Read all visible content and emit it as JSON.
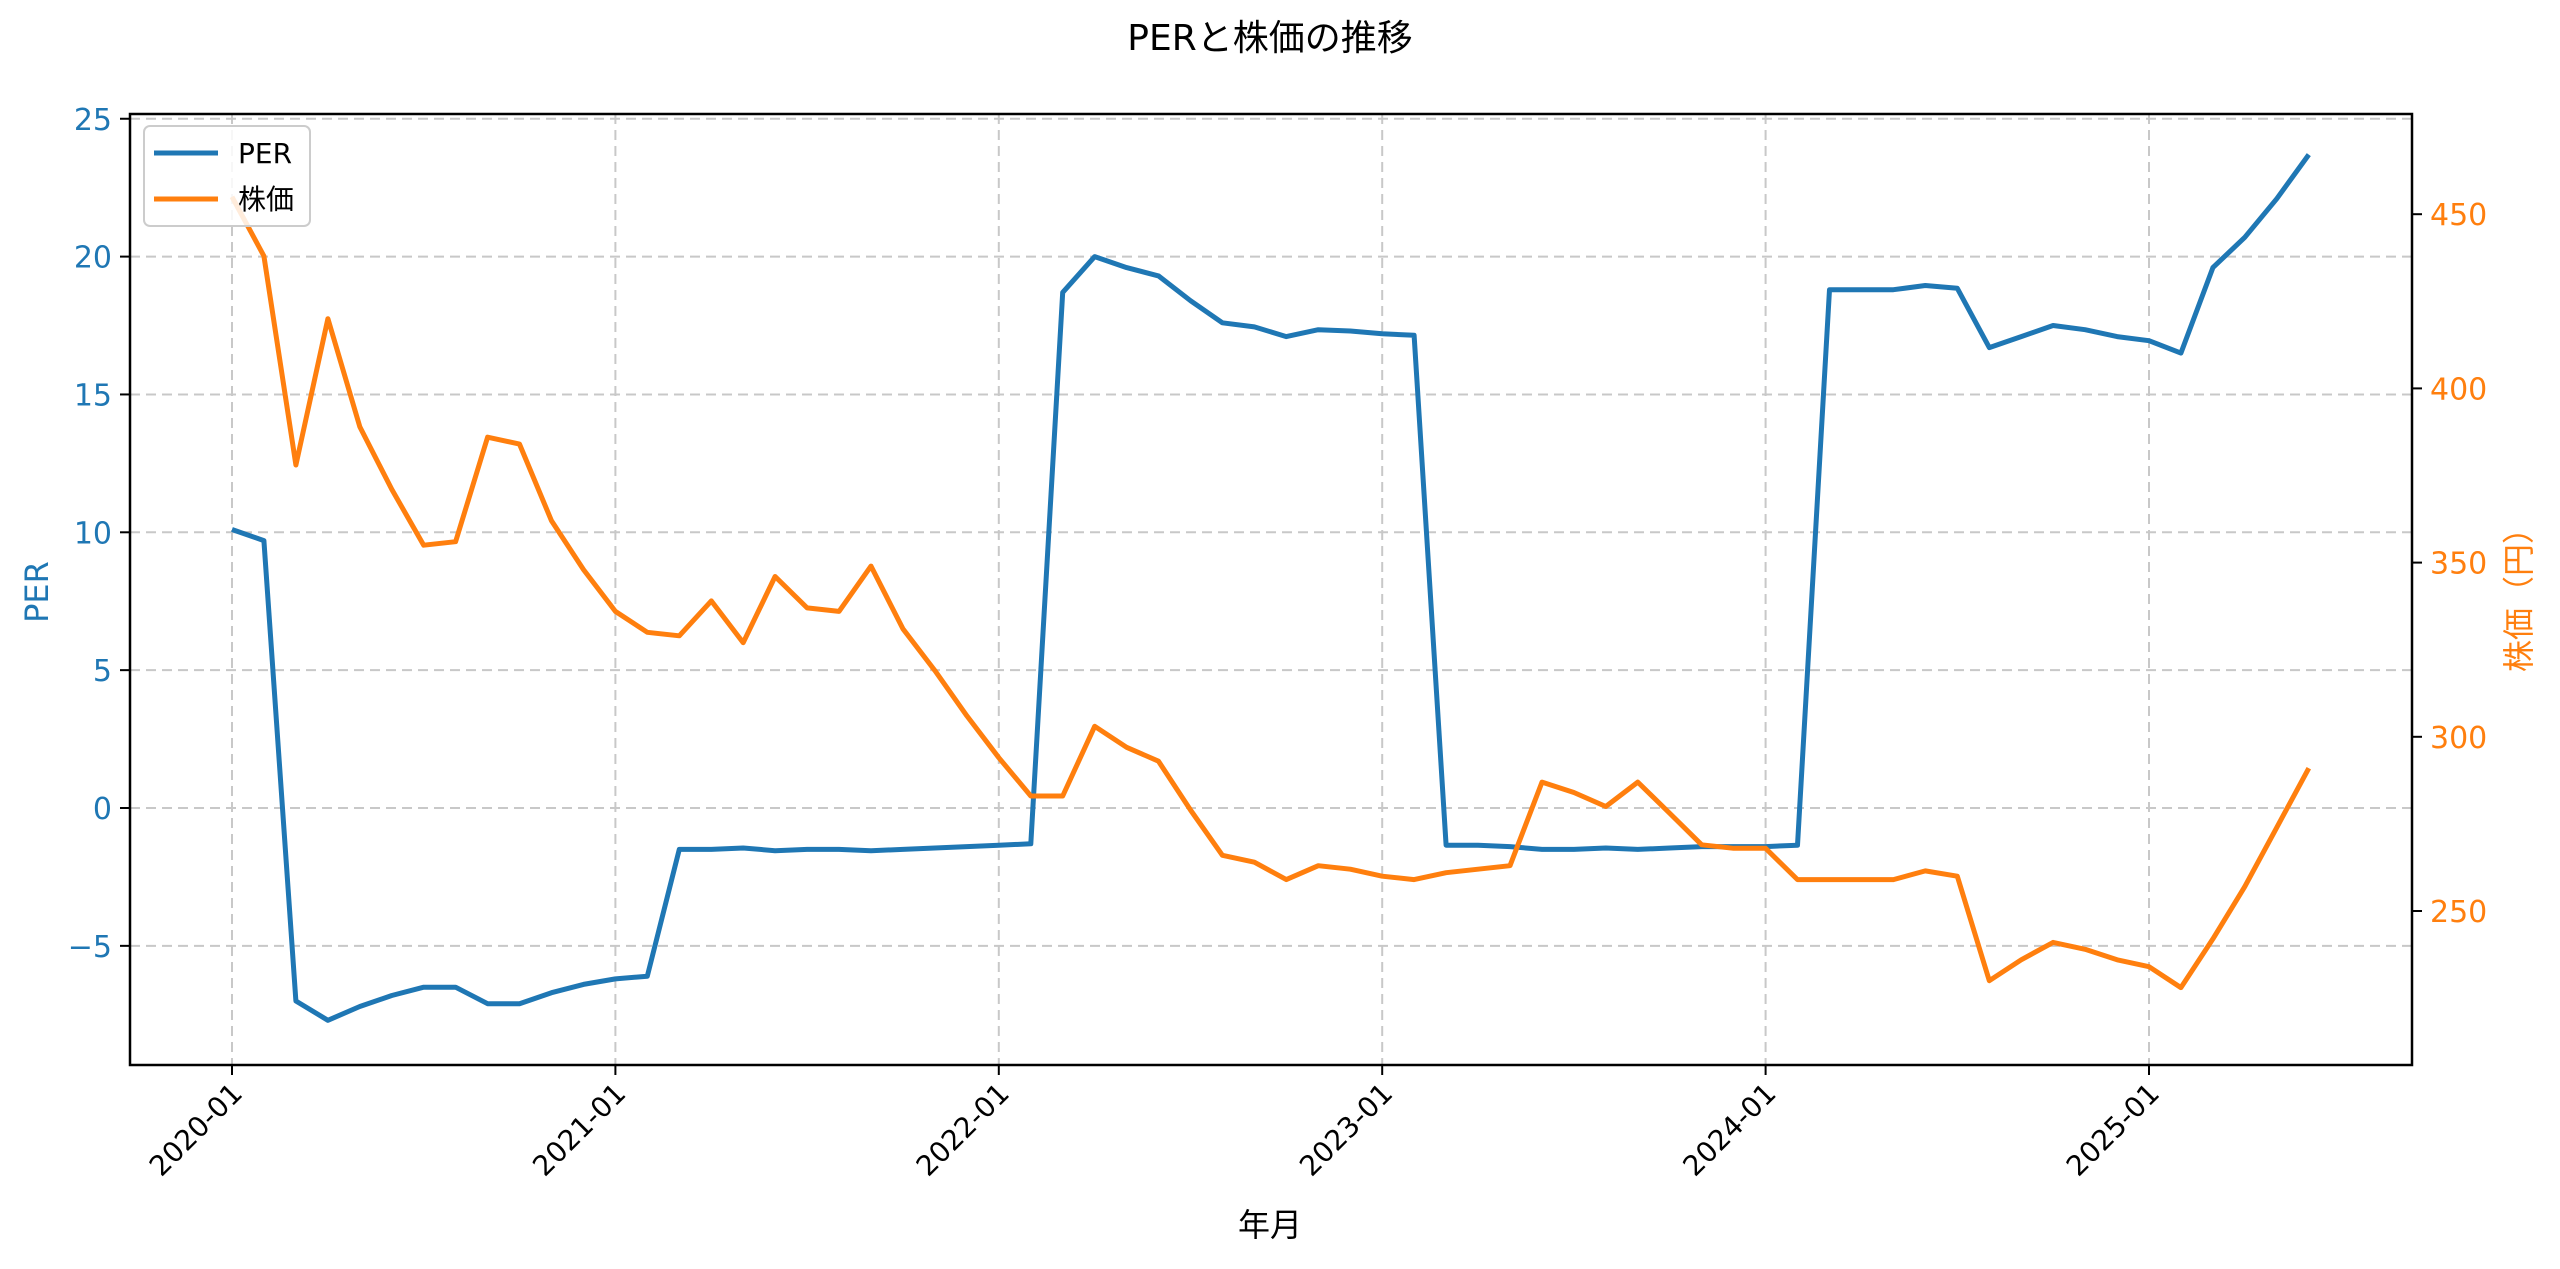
{
  "chart_data": {
    "type": "line",
    "title": "PERと株価の推移",
    "xlabel": "年月",
    "ylabel": "PER",
    "y2label": "株価（円）",
    "ylim": [
      -9.2,
      25.2
    ],
    "y2lim": [
      204,
      478
    ],
    "grid": true,
    "legend_position": "upper left",
    "x_tick_labels": [
      "2020-01",
      "2021-01",
      "2022-01",
      "2023-01",
      "2024-01",
      "2025-01"
    ],
    "y_ticks": [
      -5,
      0,
      5,
      10,
      15,
      20,
      25
    ],
    "y2_ticks": [
      250,
      300,
      350,
      400,
      450
    ],
    "x": [
      "2020-01",
      "2020-02",
      "2020-03",
      "2020-04",
      "2020-05",
      "2020-06",
      "2020-07",
      "2020-08",
      "2020-09",
      "2020-10",
      "2020-11",
      "2020-12",
      "2021-01",
      "2021-02",
      "2021-03",
      "2021-04",
      "2021-05",
      "2021-06",
      "2021-07",
      "2021-08",
      "2021-09",
      "2021-10",
      "2021-11",
      "2021-12",
      "2022-01",
      "2022-02",
      "2022-03",
      "2022-04",
      "2022-05",
      "2022-06",
      "2022-07",
      "2022-08",
      "2022-09",
      "2022-10",
      "2022-11",
      "2022-12",
      "2023-01",
      "2023-02",
      "2023-03",
      "2023-04",
      "2023-05",
      "2023-06",
      "2023-07",
      "2023-08",
      "2023-09",
      "2023-10",
      "2023-11",
      "2023-12",
      "2024-01",
      "2024-02",
      "2024-03",
      "2024-04",
      "2024-05",
      "2024-06",
      "2024-07",
      "2024-08",
      "2024-09",
      "2024-10",
      "2024-11",
      "2024-12",
      "2025-01",
      "2025-02",
      "2025-03",
      "2025-04",
      "2025-05",
      "2025-06"
    ],
    "series": [
      {
        "name": "PER",
        "axis": "left",
        "color": "#1f77b4",
        "values": [
          10.1,
          9.7,
          -7.0,
          -7.7,
          -7.2,
          -6.8,
          -6.5,
          -6.5,
          -7.1,
          -7.1,
          -6.7,
          -6.4,
          -6.2,
          -6.1,
          -1.5,
          -1.5,
          -1.45,
          -1.55,
          -1.5,
          -1.5,
          -1.55,
          -1.5,
          -1.45,
          -1.4,
          -1.35,
          -1.3,
          18.7,
          20.0,
          19.6,
          19.3,
          18.4,
          17.6,
          17.45,
          17.1,
          17.35,
          17.3,
          17.2,
          17.15,
          -1.35,
          -1.35,
          -1.4,
          -1.5,
          -1.5,
          -1.45,
          -1.5,
          -1.45,
          -1.4,
          -1.4,
          -1.4,
          -1.35,
          18.8,
          18.8,
          18.8,
          18.95,
          18.85,
          16.7,
          17.1,
          17.5,
          17.35,
          17.1,
          16.95,
          16.5,
          19.6,
          20.7,
          22.1,
          23.7
        ]
      },
      {
        "name": "株価",
        "axis": "right",
        "color": "#ff7f0e",
        "values": [
          455,
          438,
          378,
          420,
          389,
          371,
          355,
          356,
          386,
          384,
          362,
          348,
          336,
          330,
          329,
          339,
          327,
          346,
          337,
          336,
          349,
          331,
          319,
          306,
          294,
          283,
          283,
          303,
          297,
          293,
          279,
          266,
          264,
          259,
          263,
          262,
          260,
          259,
          261,
          262,
          263,
          287,
          284,
          280,
          287,
          278,
          269,
          268,
          268,
          259,
          259,
          259,
          259,
          261.5,
          260,
          230,
          236,
          241,
          239,
          236,
          234,
          228,
          242,
          257,
          274,
          291
        ]
      }
    ]
  },
  "legend": {
    "items": [
      {
        "label": "PER",
        "color": "#1f77b4"
      },
      {
        "label": "株価",
        "color": "#ff7f0e"
      }
    ]
  }
}
